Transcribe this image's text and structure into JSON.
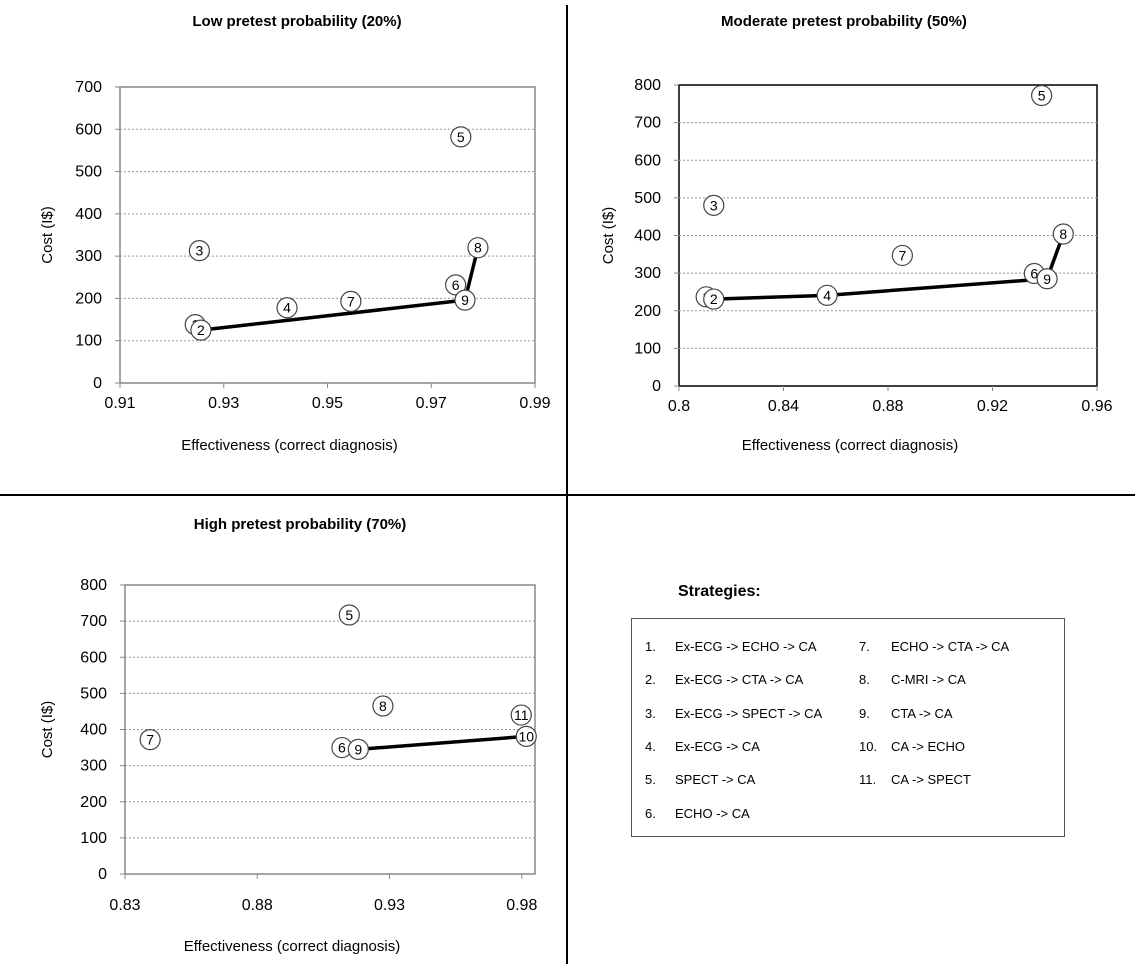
{
  "chart_data": [
    {
      "type": "scatter",
      "title": "Low pretest probability (20%)",
      "xlabel": "Effectiveness (correct diagnosis)",
      "ylabel": "Cost (I$)",
      "xlim": [
        0.91,
        0.99
      ],
      "ylim": [
        0,
        700
      ],
      "xticks": [
        "0.91",
        "0.93",
        "0.95",
        "0.97",
        "0.99"
      ],
      "yticks": [
        "0",
        "100",
        "200",
        "300",
        "400",
        "500",
        "600",
        "700"
      ],
      "grid": "horizontal",
      "points": [
        {
          "label": "1",
          "x": 0.9245,
          "y": 138
        },
        {
          "label": "2",
          "x": 0.9256,
          "y": 125
        },
        {
          "label": "3",
          "x": 0.9253,
          "y": 313
        },
        {
          "label": "4",
          "x": 0.9422,
          "y": 178
        },
        {
          "label": "5",
          "x": 0.9757,
          "y": 582
        },
        {
          "label": "6",
          "x": 0.9747,
          "y": 232
        },
        {
          "label": "7",
          "x": 0.9545,
          "y": 193
        },
        {
          "label": "8",
          "x": 0.979,
          "y": 320
        },
        {
          "label": "9",
          "x": 0.9765,
          "y": 196
        }
      ],
      "frontier": [
        {
          "x": 0.9256,
          "y": 125
        },
        {
          "x": 0.9765,
          "y": 196
        },
        {
          "x": 0.979,
          "y": 320
        }
      ]
    },
    {
      "type": "scatter",
      "title": "Moderate pretest probability (50%)",
      "xlabel": "Effectiveness (correct diagnosis)",
      "ylabel": "Cost (I$)",
      "xlim": [
        0.8,
        0.96
      ],
      "ylim": [
        0,
        800
      ],
      "xticks": [
        "0.8",
        "0.84",
        "0.88",
        "0.92",
        "0.96"
      ],
      "yticks": [
        "0",
        "100",
        "200",
        "300",
        "400",
        "500",
        "600",
        "700",
        "800"
      ],
      "grid": "horizontal",
      "points": [
        {
          "label": "1",
          "x": 0.8104,
          "y": 237
        },
        {
          "label": "2",
          "x": 0.8133,
          "y": 231
        },
        {
          "label": "3",
          "x": 0.8133,
          "y": 480
        },
        {
          "label": "4",
          "x": 0.8567,
          "y": 241
        },
        {
          "label": "5",
          "x": 0.9388,
          "y": 772
        },
        {
          "label": "6",
          "x": 0.936,
          "y": 299
        },
        {
          "label": "7",
          "x": 0.8855,
          "y": 347
        },
        {
          "label": "8",
          "x": 0.9471,
          "y": 404
        },
        {
          "label": "9",
          "x": 0.9409,
          "y": 285
        }
      ],
      "frontier": [
        {
          "x": 0.8133,
          "y": 231
        },
        {
          "x": 0.8567,
          "y": 241
        },
        {
          "x": 0.9409,
          "y": 285
        },
        {
          "x": 0.9471,
          "y": 404
        }
      ]
    },
    {
      "type": "scatter",
      "title": "High pretest probability (70%)",
      "xlabel": "Effectiveness (correct diagnosis)",
      "ylabel": "Cost (I$)",
      "xlim": [
        0.83,
        0.985
      ],
      "ylim": [
        0,
        800
      ],
      "xticks": [
        "0.83",
        "0.88",
        "0.93",
        "0.98"
      ],
      "yticks": [
        "0",
        "100",
        "200",
        "300",
        "400",
        "500",
        "600",
        "700",
        "800"
      ],
      "grid": "horizontal",
      "points": [
        {
          "label": "5",
          "x": 0.9148,
          "y": 717
        },
        {
          "label": "6",
          "x": 0.912,
          "y": 350
        },
        {
          "label": "7",
          "x": 0.8395,
          "y": 372
        },
        {
          "label": "8",
          "x": 0.9275,
          "y": 465
        },
        {
          "label": "9",
          "x": 0.9182,
          "y": 345
        },
        {
          "label": "10",
          "x": 0.9817,
          "y": 381
        },
        {
          "label": "11",
          "x": 0.9798,
          "y": 440
        }
      ],
      "frontier": [
        {
          "x": 0.9182,
          "y": 345
        },
        {
          "x": 0.9817,
          "y": 381
        }
      ]
    }
  ],
  "legend": {
    "title": "Strategies:",
    "items": [
      {
        "num": "1.",
        "label": "Ex-ECG -> ECHO -> CA"
      },
      {
        "num": "2.",
        "label": "Ex-ECG -> CTA -> CA"
      },
      {
        "num": "3.",
        "label": "Ex-ECG -> SPECT -> CA"
      },
      {
        "num": "4.",
        "label": "Ex-ECG -> CA"
      },
      {
        "num": "5.",
        "label": "SPECT -> CA"
      },
      {
        "num": "6.",
        "label": "ECHO -> CA"
      },
      {
        "num": "7.",
        "label": "ECHO -> CTA -> CA"
      },
      {
        "num": "8.",
        "label": "C-MRI -> CA"
      },
      {
        "num": "9.",
        "label": "CTA -> CA"
      },
      {
        "num": "10.",
        "label": "CA -> ECHO"
      },
      {
        "num": "11.",
        "label": "CA -> SPECT"
      }
    ]
  }
}
